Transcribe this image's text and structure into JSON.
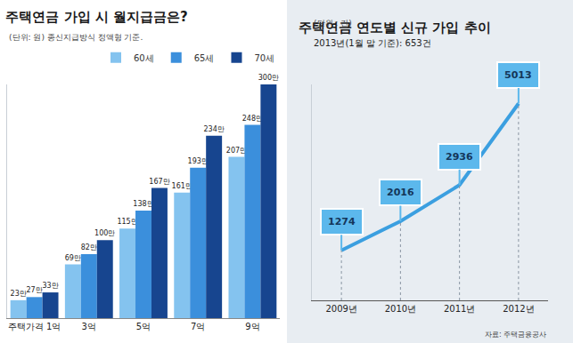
{
  "chart_data": [
    {
      "type": "bar",
      "title": "주택연금 가입 시 월지급금은?",
      "subtitle": "(단위: 원) 종신지급방식 정액형 기준.",
      "categories": [
        "주택가격 1억",
        "3억",
        "5억",
        "7억",
        "9억"
      ],
      "series": [
        {
          "name": "60세",
          "color": "#84c3ef",
          "values": [
            23,
            69,
            115,
            161,
            207
          ],
          "value_labels": [
            "23만",
            "69만",
            "115만",
            "161만",
            "207만"
          ]
        },
        {
          "name": "65세",
          "color": "#3b8fdc",
          "values": [
            27,
            82,
            138,
            193,
            248
          ],
          "value_labels": [
            "27만",
            "82만",
            "138만",
            "193만",
            "248만"
          ]
        },
        {
          "name": "70세",
          "color": "#17458f",
          "values": [
            33,
            100,
            167,
            234,
            300
          ],
          "value_labels": [
            "33만",
            "100만",
            "167만",
            "234만",
            "300만"
          ]
        }
      ],
      "data_labels": true,
      "legend": "top-right",
      "tick_labels": "x",
      "ylim": [
        0,
        300
      ]
    },
    {
      "type": "line",
      "title": "주택연금 연도별 신규 가입 추이",
      "subtitle": "(단위 : 건)",
      "annotations": [
        "2013년(1월 말 기준): 653건",
        "자료: 주택금융공사"
      ],
      "categories": [
        "2009년",
        "2010년",
        "2011년",
        "2012년"
      ],
      "values": [
        1274,
        2016,
        2936,
        5013
      ],
      "color": "#3b9fe0",
      "data_labels": true,
      "tick_labels": "x",
      "ylim": [
        0,
        5500
      ]
    }
  ]
}
